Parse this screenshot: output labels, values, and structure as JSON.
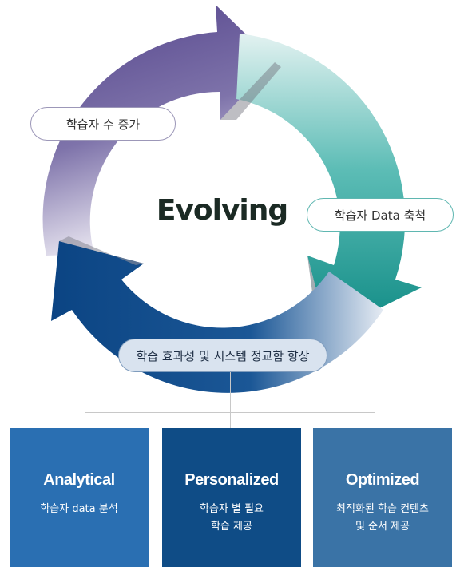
{
  "diagram": {
    "center_title": "Evolving",
    "cycle_labels": {
      "top_left": "학습자 수 증가",
      "right": "학습자 Data 축척",
      "bottom": "학습 효과성 및 시스템 정교함 향상"
    },
    "boxes": [
      {
        "title": "Analytical",
        "lines": [
          "학습자 data 분석"
        ]
      },
      {
        "title": "Personalized",
        "lines": [
          "학습자 별 필요",
          "학습 제공"
        ]
      },
      {
        "title": "Optimized",
        "lines": [
          "최적화된 학습 컨텐츠",
          "및 순서 제공"
        ]
      }
    ]
  },
  "colors": {
    "purple_arrow": "#5a4b8c",
    "teal_arrow": "#1a8f88",
    "navy_arrow": "#0e4a87",
    "box_analytical": "#2a6fb2",
    "box_personalized": "#0f4c86",
    "box_optimized": "#3a73a6"
  }
}
